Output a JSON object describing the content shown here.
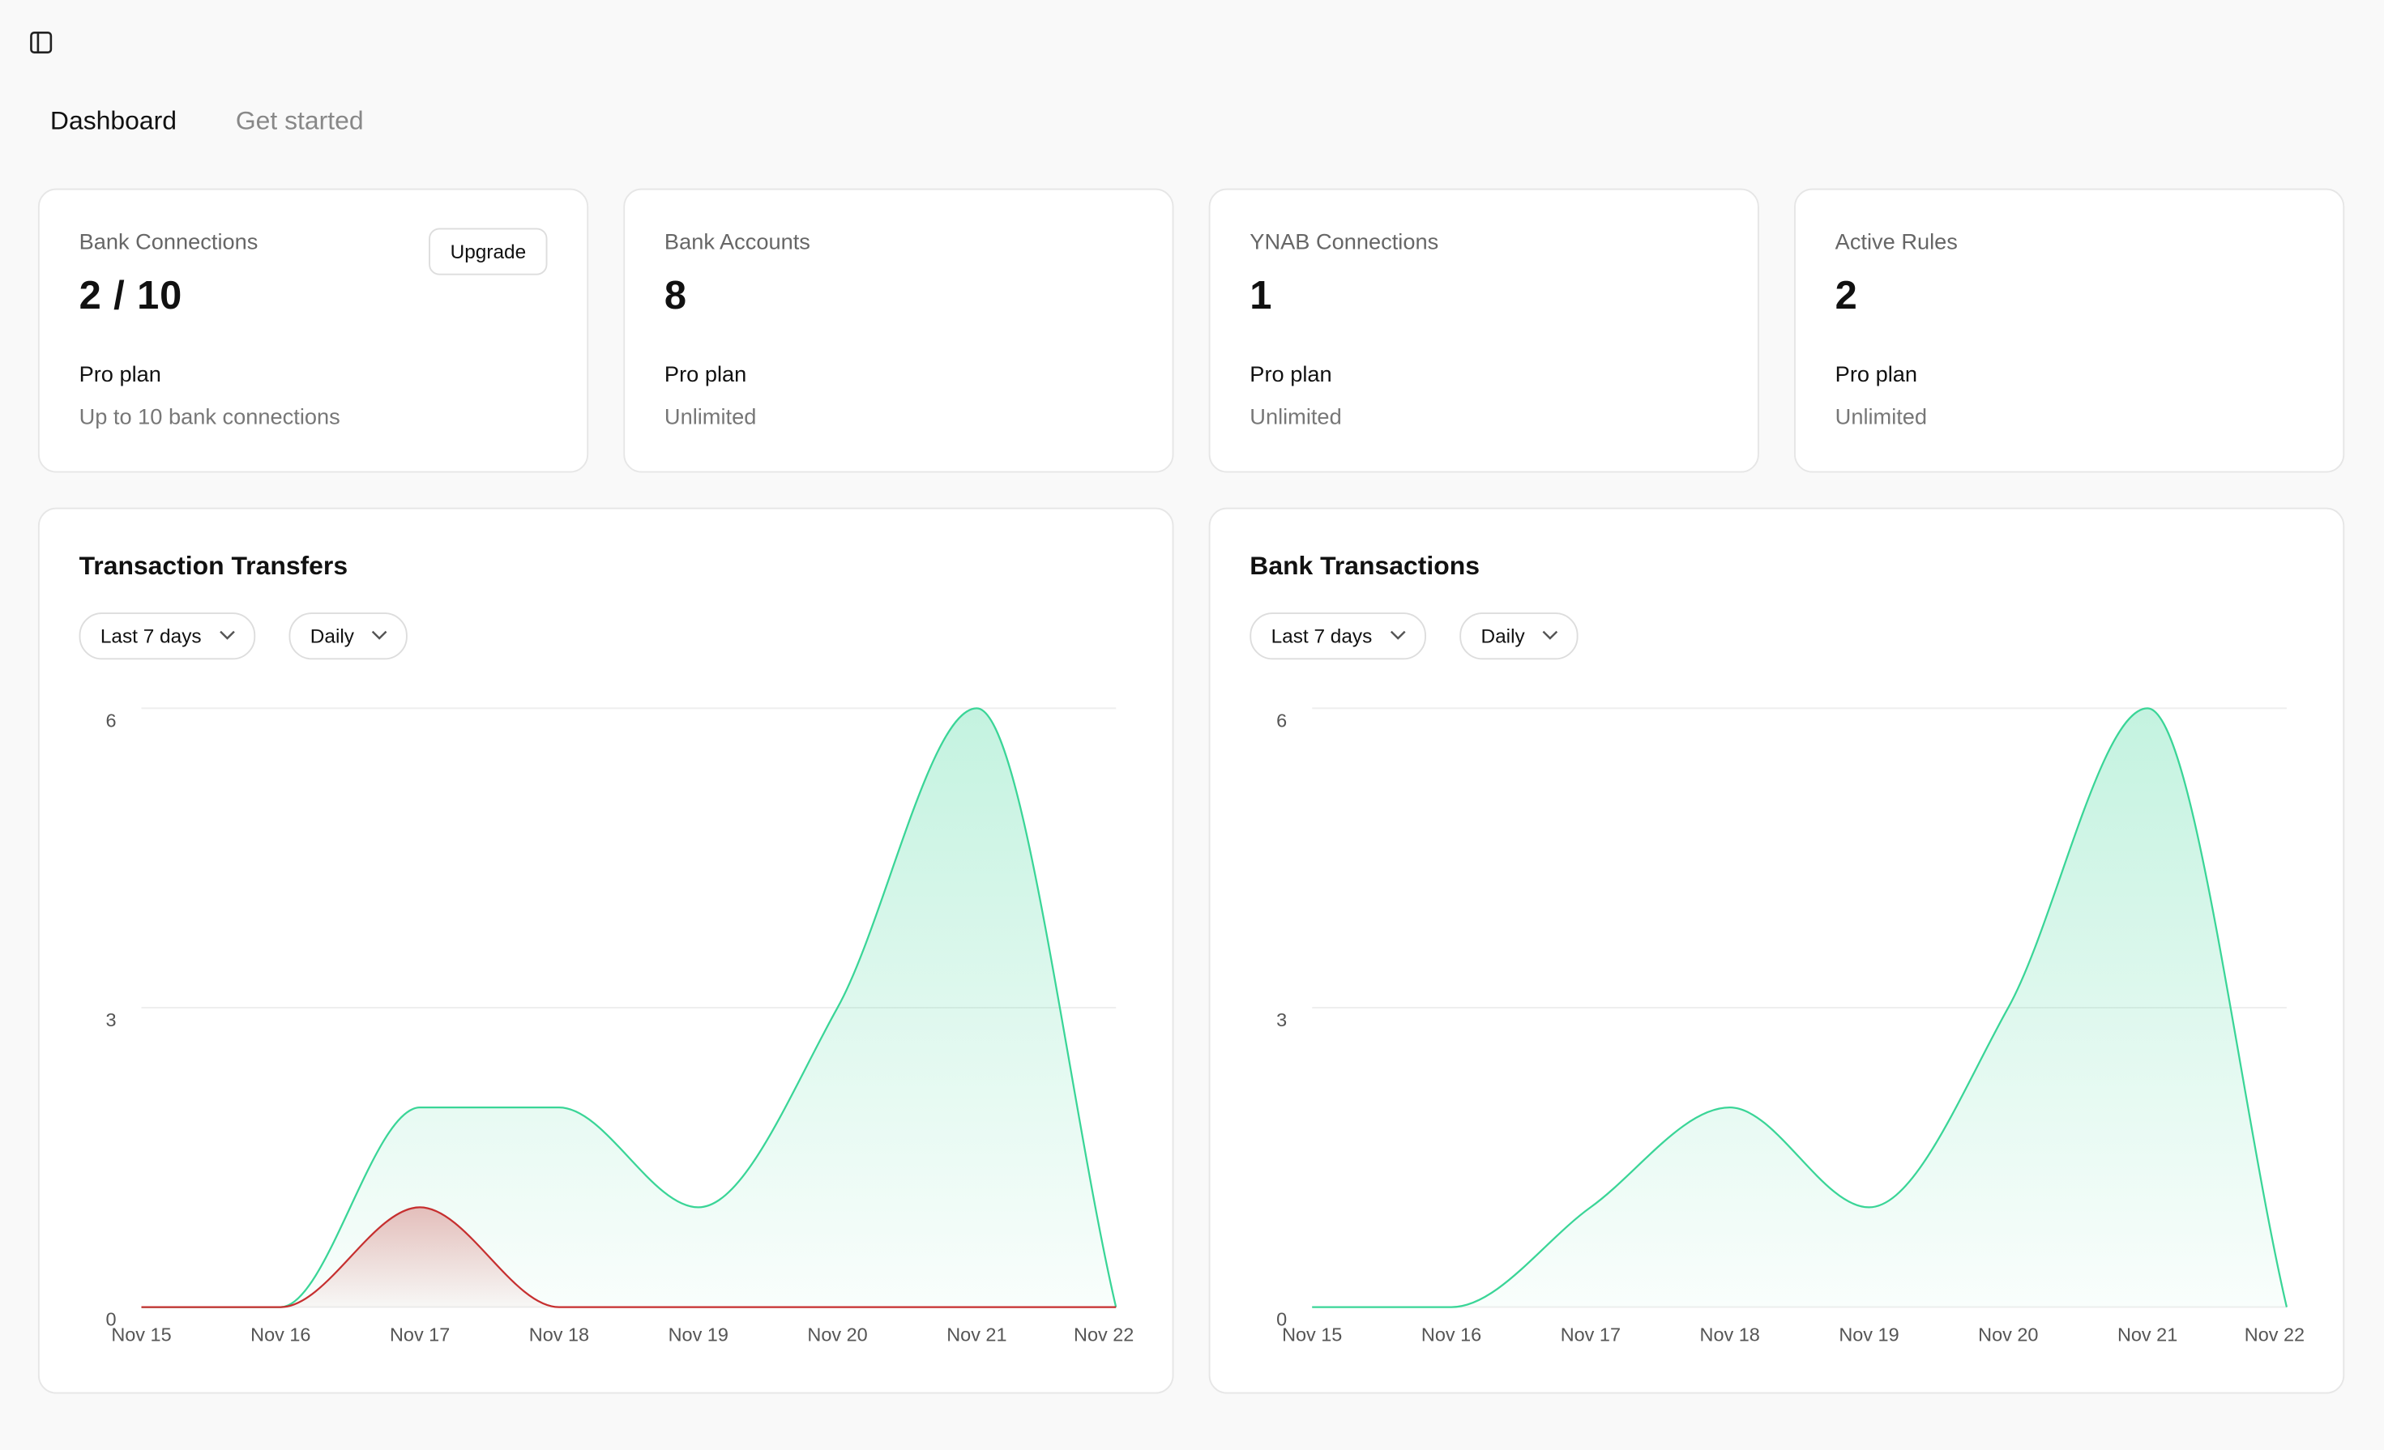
{
  "nav": {
    "tabs": [
      "Dashboard",
      "Get started"
    ]
  },
  "stats": [
    {
      "label": "Bank Connections",
      "value": "2 / 10",
      "plan": "Pro plan",
      "detail": "Up to 10 bank connections",
      "action": "Upgrade"
    },
    {
      "label": "Bank Accounts",
      "value": "8",
      "plan": "Pro plan",
      "detail": "Unlimited"
    },
    {
      "label": "YNAB Connections",
      "value": "1",
      "plan": "Pro plan",
      "detail": "Unlimited"
    },
    {
      "label": "Active Rules",
      "value": "2",
      "plan": "Pro plan",
      "detail": "Unlimited"
    }
  ],
  "chart_data": [
    {
      "type": "area",
      "title": "Transaction Transfers",
      "filters": [
        "Last 7 days",
        "Daily"
      ],
      "x": [
        "Nov 15",
        "Nov 16",
        "Nov 17",
        "Nov 18",
        "Nov 19",
        "Nov 20",
        "Nov 21",
        "Nov 22"
      ],
      "series": [
        {
          "color": "#3ad597",
          "values": [
            0,
            0,
            2,
            2,
            1,
            3,
            6,
            0
          ]
        },
        {
          "color": "#c62f2f",
          "values": [
            0,
            0,
            1,
            0,
            0,
            0,
            0,
            0
          ]
        }
      ],
      "ylim": [
        0,
        6
      ],
      "yticks": [
        0,
        3,
        6
      ],
      "grid": true
    },
    {
      "type": "area",
      "title": "Bank Transactions",
      "filters": [
        "Last 7 days",
        "Daily"
      ],
      "x": [
        "Nov 15",
        "Nov 16",
        "Nov 17",
        "Nov 18",
        "Nov 19",
        "Nov 20",
        "Nov 21",
        "Nov 22"
      ],
      "series": [
        {
          "color": "#3ad597",
          "values": [
            0,
            0,
            1,
            2,
            1,
            3,
            6,
            0
          ]
        }
      ],
      "ylim": [
        0,
        6
      ],
      "yticks": [
        0,
        3,
        6
      ],
      "grid": true
    }
  ]
}
